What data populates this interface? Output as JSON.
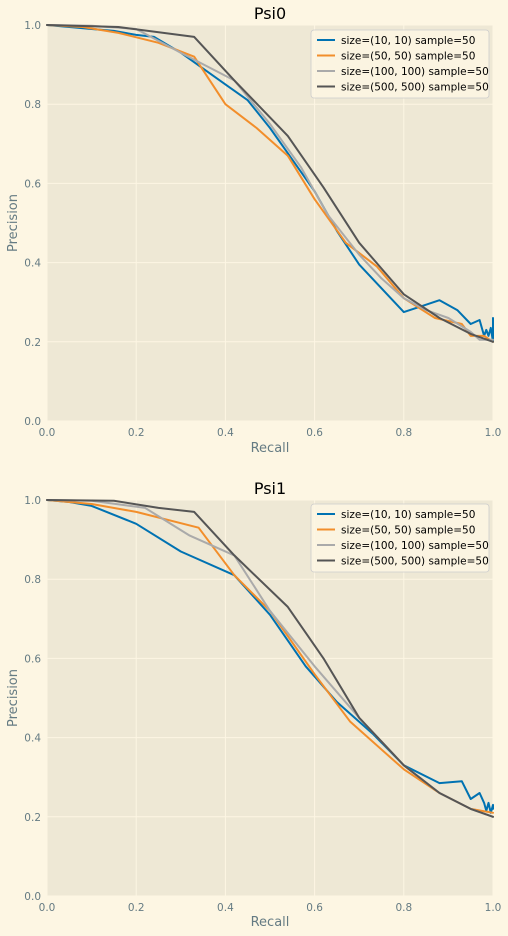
{
  "colors": {
    "figure_bg": "#fdf6e3",
    "axes_bg": "#eee8d5",
    "grid": "#fdf6e3",
    "text": "#657b83",
    "legend_bg": "#fdf6e3"
  },
  "chart_data": [
    {
      "type": "line",
      "title": "Psi0",
      "xlabel": "Recall",
      "ylabel": "Precision",
      "xlim": [
        0,
        1
      ],
      "ylim": [
        0,
        1
      ],
      "xticks": [
        "0.0",
        "0.2",
        "0.4",
        "0.6",
        "0.8",
        "1.0"
      ],
      "yticks": [
        "0.0",
        "0.2",
        "0.4",
        "0.6",
        "0.8",
        "1.0"
      ],
      "grid": true,
      "legend_position": "top-right",
      "series": [
        {
          "name": "size=(10, 10) sample=50",
          "color": "#0072b2",
          "x": [
            0,
            0.05,
            0.1,
            0.15,
            0.2,
            0.24,
            0.3,
            0.35,
            0.4,
            0.45,
            0.5,
            0.55,
            0.6,
            0.65,
            0.7,
            0.75,
            0.8,
            0.84,
            0.88,
            0.92,
            0.95,
            0.97,
            0.98,
            0.985,
            0.99,
            0.995,
            1.0,
            1.0
          ],
          "y": [
            1.0,
            0.995,
            0.99,
            0.985,
            0.975,
            0.97,
            0.93,
            0.89,
            0.85,
            0.81,
            0.74,
            0.66,
            0.58,
            0.48,
            0.395,
            0.335,
            0.275,
            0.29,
            0.305,
            0.28,
            0.245,
            0.255,
            0.215,
            0.23,
            0.215,
            0.235,
            0.2,
            0.26
          ]
        },
        {
          "name": "size=(50, 50) sample=50",
          "color": "#f28e2b",
          "x": [
            0,
            0.08,
            0.16,
            0.25,
            0.33,
            0.4,
            0.47,
            0.54,
            0.6,
            0.67,
            0.74,
            0.8,
            0.87,
            0.93,
            0.95,
            0.98,
            1.0
          ],
          "y": [
            1.0,
            0.995,
            0.98,
            0.955,
            0.92,
            0.8,
            0.74,
            0.67,
            0.56,
            0.45,
            0.39,
            0.31,
            0.26,
            0.245,
            0.215,
            0.215,
            0.2
          ]
        },
        {
          "name": "size=(100, 100) sample=50",
          "color": "#aaaaaa",
          "x": [
            0,
            0.1,
            0.2,
            0.3,
            0.42,
            0.5,
            0.57,
            0.63,
            0.7,
            0.75,
            0.8,
            0.85,
            0.9,
            0.95,
            0.97,
            1.0
          ],
          "y": [
            1.0,
            0.998,
            0.99,
            0.93,
            0.86,
            0.75,
            0.64,
            0.52,
            0.42,
            0.36,
            0.31,
            0.28,
            0.26,
            0.225,
            0.205,
            0.205
          ]
        },
        {
          "name": "size=(500, 500) sample=50",
          "color": "#555555",
          "x": [
            0,
            0.16,
            0.33,
            0.42,
            0.54,
            0.62,
            0.7,
            0.8,
            0.88,
            0.95,
            1.0
          ],
          "y": [
            1.0,
            0.995,
            0.97,
            0.86,
            0.72,
            0.59,
            0.45,
            0.32,
            0.26,
            0.22,
            0.2
          ]
        }
      ]
    },
    {
      "type": "line",
      "title": "Psi1",
      "xlabel": "Recall",
      "ylabel": "Precision",
      "xlim": [
        0,
        1
      ],
      "ylim": [
        0,
        1
      ],
      "xticks": [
        "0.0",
        "0.2",
        "0.4",
        "0.6",
        "0.8",
        "1.0"
      ],
      "yticks": [
        "0.0",
        "0.2",
        "0.4",
        "0.6",
        "0.8",
        "1.0"
      ],
      "grid": true,
      "legend_position": "top-right",
      "series": [
        {
          "name": "size=(10, 10) sample=50",
          "color": "#0072b2",
          "x": [
            0,
            0.05,
            0.1,
            0.2,
            0.3,
            0.42,
            0.5,
            0.58,
            0.65,
            0.73,
            0.8,
            0.88,
            0.93,
            0.95,
            0.97,
            0.98,
            0.985,
            0.99,
            0.995,
            1.0,
            1.0
          ],
          "y": [
            1.0,
            0.995,
            0.985,
            0.94,
            0.87,
            0.81,
            0.71,
            0.58,
            0.49,
            0.41,
            0.33,
            0.285,
            0.29,
            0.245,
            0.26,
            0.235,
            0.215,
            0.235,
            0.21,
            0.23,
            0.22
          ]
        },
        {
          "name": "size=(50, 50) sample=50",
          "color": "#f28e2b",
          "x": [
            0,
            0.1,
            0.2,
            0.34,
            0.42,
            0.5,
            0.6,
            0.68,
            0.8,
            0.88,
            0.95,
            1.0
          ],
          "y": [
            1.0,
            0.99,
            0.97,
            0.93,
            0.81,
            0.72,
            0.56,
            0.44,
            0.32,
            0.26,
            0.22,
            0.21
          ]
        },
        {
          "name": "size=(100, 100) sample=50",
          "color": "#aaaaaa",
          "x": [
            0,
            0.1,
            0.22,
            0.32,
            0.42,
            0.5,
            0.6,
            0.7,
            0.8,
            0.88,
            0.95,
            1.0
          ],
          "y": [
            1.0,
            0.998,
            0.98,
            0.91,
            0.86,
            0.72,
            0.58,
            0.45,
            0.33,
            0.26,
            0.22,
            0.2
          ]
        },
        {
          "name": "size=(500, 500) sample=50",
          "color": "#555555",
          "x": [
            0,
            0.15,
            0.25,
            0.33,
            0.42,
            0.54,
            0.62,
            0.7,
            0.8,
            0.88,
            0.95,
            1.0
          ],
          "y": [
            1.0,
            0.998,
            0.98,
            0.97,
            0.86,
            0.73,
            0.6,
            0.45,
            0.33,
            0.26,
            0.22,
            0.2
          ]
        }
      ]
    }
  ]
}
